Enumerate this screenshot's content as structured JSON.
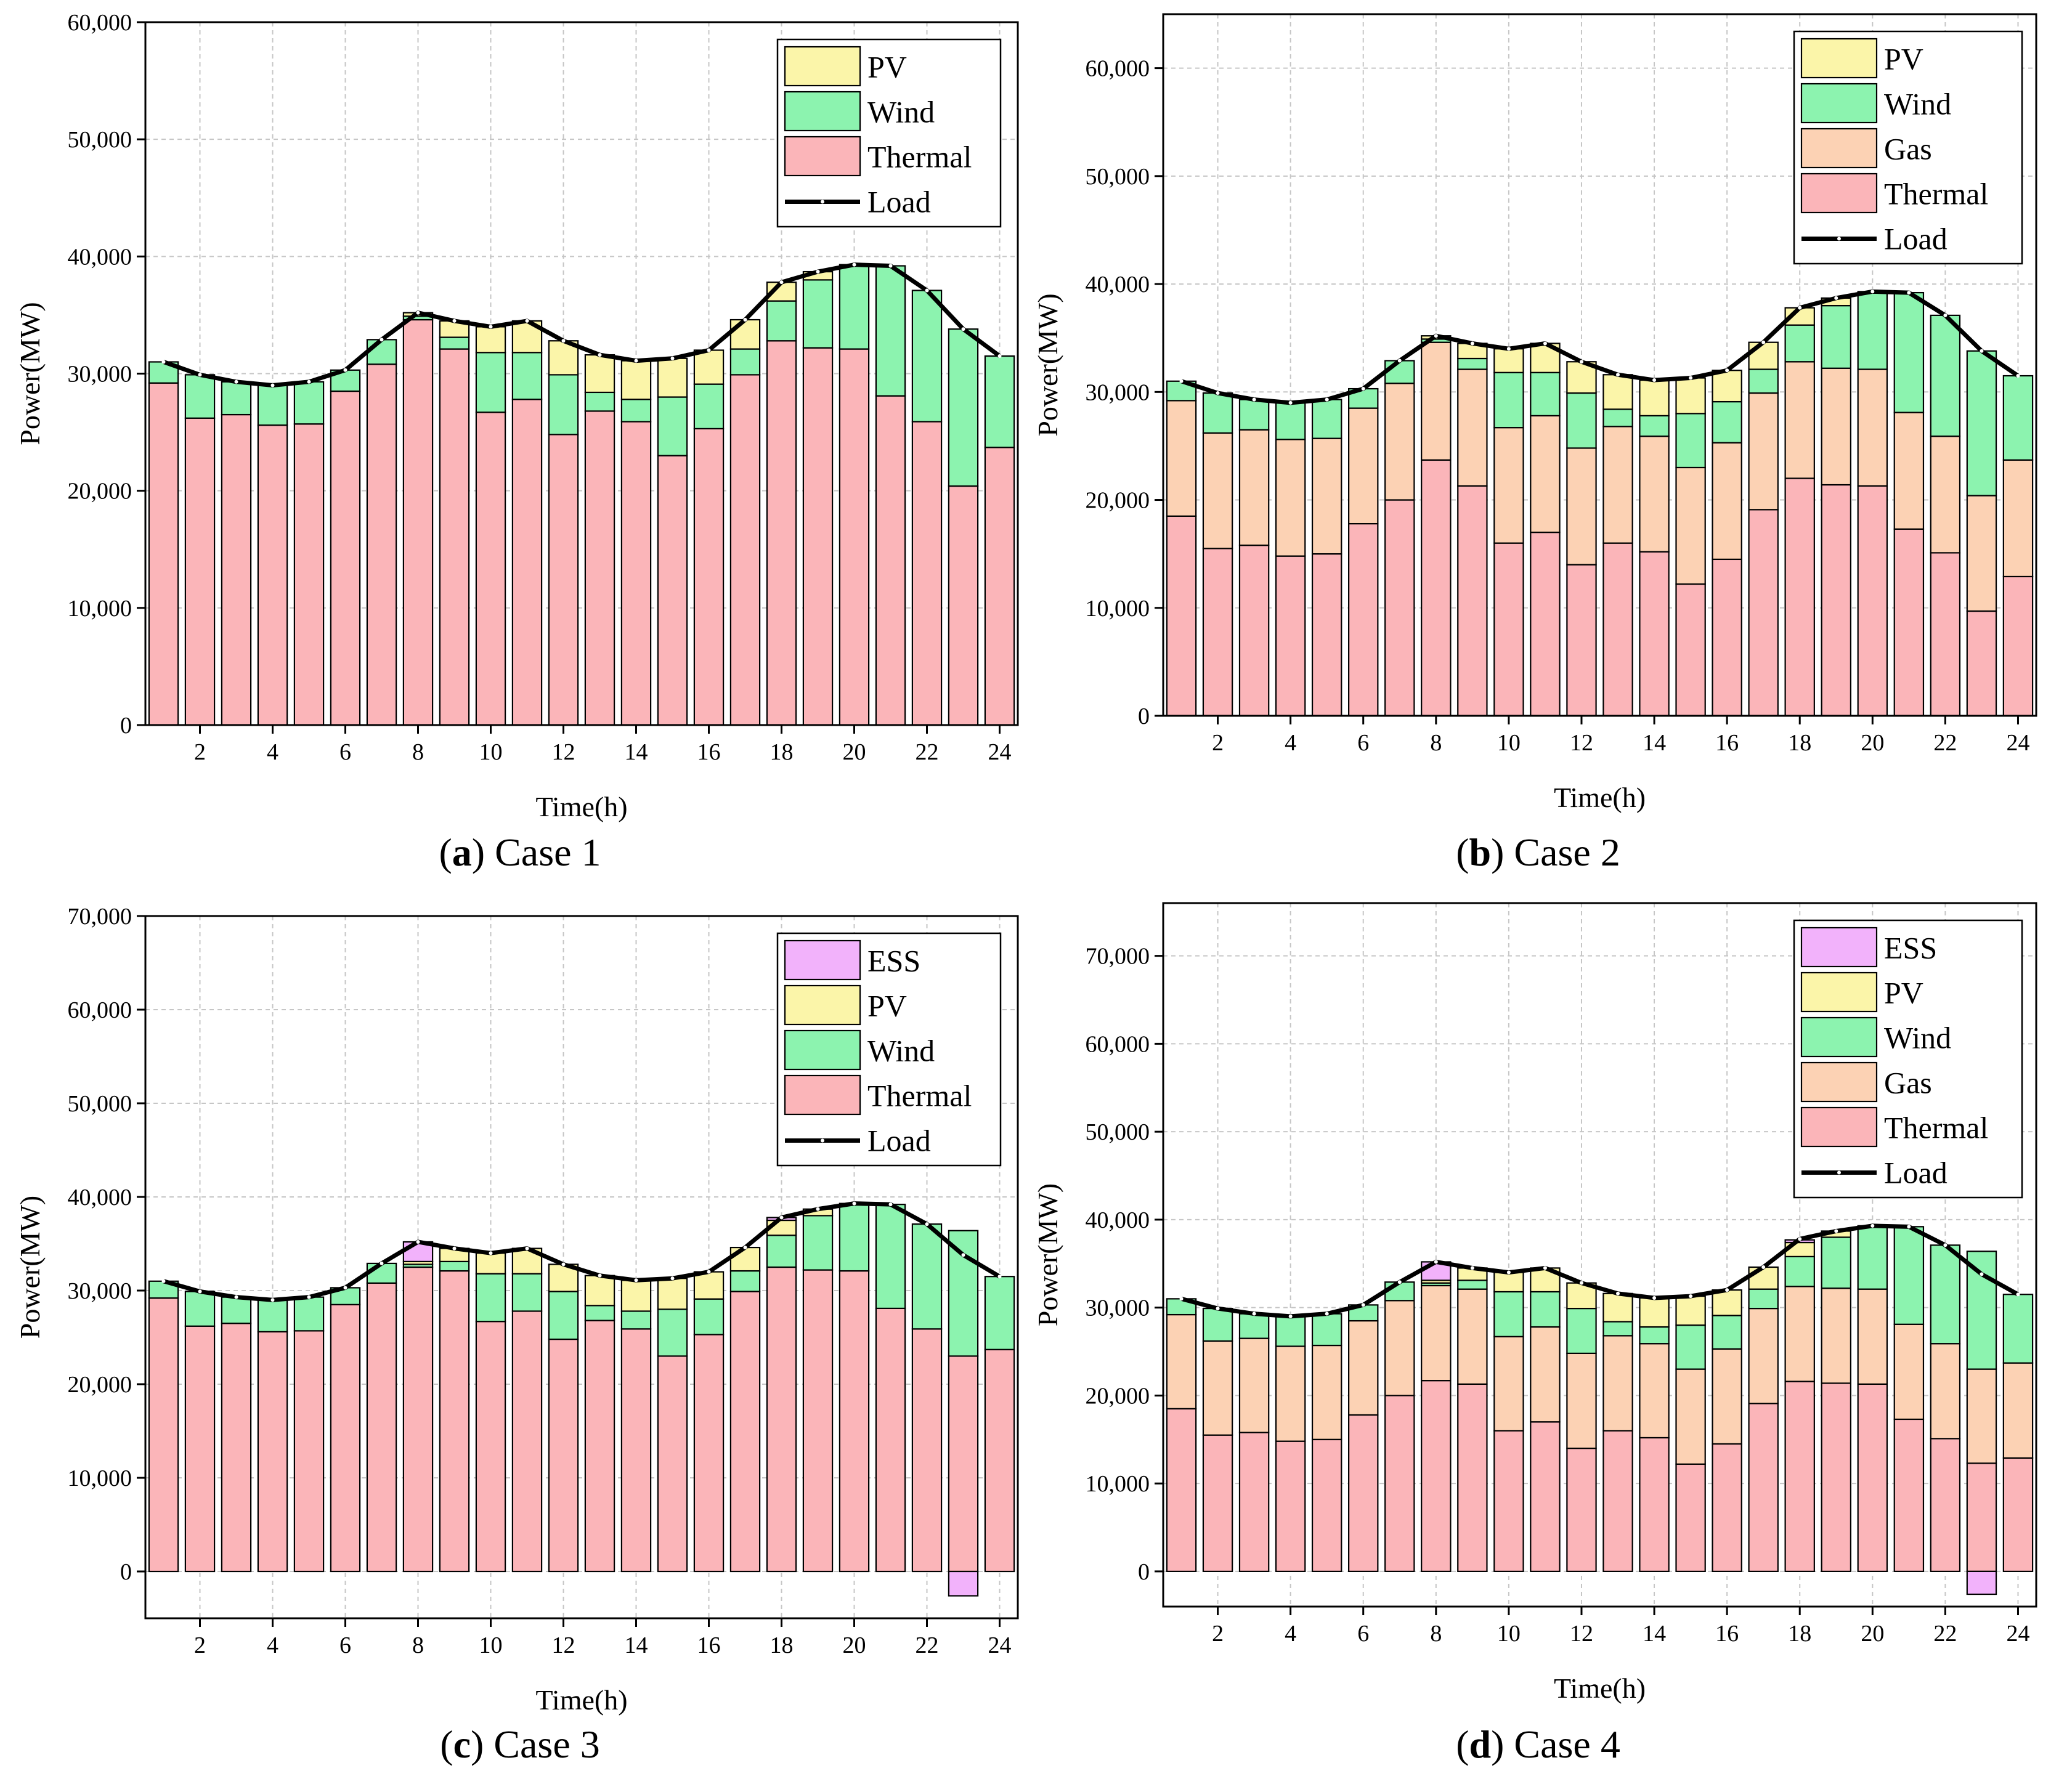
{
  "figure": {
    "colors": {
      "Thermal": "#fbb5b9",
      "Gas": "#fcd2b4",
      "Wind": "#8cf3af",
      "PV": "#fbf5a9",
      "ESS": "#f2b2fb",
      "Load": "#000000",
      "grid": "#c6c6c6"
    }
  },
  "chart_data": [
    {
      "id": "a",
      "type": "bar",
      "stacked": true,
      "caption_letter": "a",
      "caption_text": " Case 1",
      "title": "",
      "xlabel": "Time(h)",
      "ylabel": "Power(MW)",
      "ylim": [
        0,
        60000
      ],
      "yticks": [
        0,
        10000,
        20000,
        30000,
        40000,
        50000,
        60000
      ],
      "ytick_labels": [
        "0",
        "10,000",
        "20,000",
        "30,000",
        "40,000",
        "50,000",
        "60,000"
      ],
      "xticks": [
        2,
        4,
        6,
        8,
        10,
        12,
        14,
        16,
        18,
        20,
        22,
        24
      ],
      "xtick_labels": [
        "2",
        "4",
        "6",
        "8",
        "10",
        "12",
        "14",
        "16",
        "18",
        "20",
        "22",
        "24"
      ],
      "grid": true,
      "legend_position": "top-right",
      "legend": [
        "PV",
        "Wind",
        "Thermal",
        "Load"
      ],
      "categories": [
        1,
        2,
        3,
        4,
        5,
        6,
        7,
        8,
        9,
        10,
        11,
        12,
        13,
        14,
        15,
        16,
        17,
        18,
        19,
        20,
        21,
        22,
        23,
        24
      ],
      "series": [
        {
          "name": "Thermal",
          "values": [
            29200,
            26200,
            26500,
            25600,
            25700,
            28500,
            30800,
            34600,
            32100,
            26700,
            27800,
            24800,
            26800,
            25900,
            23000,
            25300,
            29900,
            32800,
            32200,
            32100,
            28100,
            25900,
            20400,
            23700
          ]
        },
        {
          "name": "Wind",
          "values": [
            1800,
            3700,
            2800,
            3400,
            3600,
            1800,
            2100,
            300,
            1000,
            5100,
            4000,
            5100,
            1600,
            1900,
            5000,
            3800,
            2200,
            3400,
            5800,
            7200,
            11100,
            11200,
            13400,
            7800
          ]
        },
        {
          "name": "PV",
          "values": [
            0,
            0,
            0,
            0,
            0,
            0,
            0,
            300,
            1400,
            2200,
            2700,
            2900,
            3200,
            3300,
            3300,
            2900,
            2500,
            1600,
            700,
            0,
            0,
            0,
            0,
            0
          ]
        }
      ],
      "load": [
        31000,
        29900,
        29300,
        29000,
        29300,
        30300,
        32900,
        35200,
        34500,
        34000,
        34500,
        32800,
        31600,
        31100,
        31300,
        32000,
        34600,
        37800,
        38700,
        39300,
        39200,
        37100,
        33800,
        31500
      ]
    },
    {
      "id": "b",
      "type": "bar",
      "stacked": true,
      "caption_letter": "b",
      "caption_text": " Case 2",
      "title": "",
      "xlabel": "Time(h)",
      "ylabel": "Power(MW)",
      "ylim": [
        0,
        65000
      ],
      "yticks": [
        0,
        10000,
        20000,
        30000,
        40000,
        50000,
        60000
      ],
      "ytick_labels": [
        "0",
        "10,000",
        "20,000",
        "30,000",
        "40,000",
        "50,000",
        "60,000"
      ],
      "xticks": [
        2,
        4,
        6,
        8,
        10,
        12,
        14,
        16,
        18,
        20,
        22,
        24
      ],
      "xtick_labels": [
        "2",
        "4",
        "6",
        "8",
        "10",
        "12",
        "14",
        "16",
        "18",
        "20",
        "22",
        "24"
      ],
      "grid": true,
      "legend_position": "top-right",
      "legend": [
        "PV",
        "Wind",
        "Gas",
        "Thermal",
        "Load"
      ],
      "categories": [
        1,
        2,
        3,
        4,
        5,
        6,
        7,
        8,
        9,
        10,
        11,
        12,
        13,
        14,
        15,
        16,
        17,
        18,
        19,
        20,
        21,
        22,
        23,
        24
      ],
      "series": [
        {
          "name": "Thermal",
          "values": [
            18500,
            15500,
            15800,
            14800,
            15000,
            17800,
            20000,
            23700,
            21300,
            16000,
            17000,
            14000,
            16000,
            15200,
            12200,
            14500,
            19100,
            22000,
            21400,
            21300,
            17300,
            15100,
            9700,
            12900
          ]
        },
        {
          "name": "Gas",
          "values": [
            10700,
            10700,
            10700,
            10800,
            10700,
            10700,
            10800,
            10900,
            10800,
            10700,
            10800,
            10800,
            10800,
            10700,
            10800,
            10800,
            10800,
            10800,
            10800,
            10800,
            10800,
            10800,
            10700,
            10800
          ]
        },
        {
          "name": "Wind",
          "values": [
            1800,
            3700,
            2800,
            3400,
            3600,
            1800,
            2100,
            300,
            1000,
            5100,
            4000,
            5100,
            1600,
            1900,
            5000,
            3800,
            2200,
            3400,
            5800,
            7200,
            11100,
            11200,
            13400,
            7800
          ]
        },
        {
          "name": "PV",
          "values": [
            0,
            0,
            0,
            0,
            0,
            0,
            0,
            300,
            1400,
            2200,
            2700,
            2900,
            3200,
            3300,
            3300,
            2900,
            2500,
            1600,
            700,
            0,
            0,
            0,
            0,
            0
          ]
        }
      ],
      "load": [
        31000,
        29900,
        29300,
        29000,
        29300,
        30300,
        32900,
        35200,
        34500,
        34000,
        34500,
        32800,
        31600,
        31100,
        31300,
        32000,
        34600,
        37800,
        38700,
        39300,
        39200,
        37100,
        33800,
        31500
      ]
    },
    {
      "id": "c",
      "type": "bar",
      "stacked": true,
      "caption_letter": "c",
      "caption_text": " Case 3",
      "title": "",
      "xlabel": "Time(h)",
      "ylabel": "Power(MW)",
      "ylim": [
        -5000,
        70000
      ],
      "yticks": [
        0,
        10000,
        20000,
        30000,
        40000,
        50000,
        60000,
        70000
      ],
      "ytick_labels": [
        "0",
        "10,000",
        "20,000",
        "30,000",
        "40,000",
        "50,000",
        "60,000",
        "70,000"
      ],
      "xticks": [
        2,
        4,
        6,
        8,
        10,
        12,
        14,
        16,
        18,
        20,
        22,
        24
      ],
      "xtick_labels": [
        "2",
        "4",
        "6",
        "8",
        "10",
        "12",
        "14",
        "16",
        "18",
        "20",
        "22",
        "24"
      ],
      "grid": true,
      "legend_position": "top-right",
      "legend": [
        "ESS",
        "PV",
        "Wind",
        "Thermal",
        "Load"
      ],
      "categories": [
        1,
        2,
        3,
        4,
        5,
        6,
        7,
        8,
        9,
        10,
        11,
        12,
        13,
        14,
        15,
        16,
        17,
        18,
        19,
        20,
        21,
        22,
        23,
        24
      ],
      "series": [
        {
          "name": "Thermal",
          "values": [
            29200,
            26200,
            26500,
            25600,
            25700,
            28500,
            30800,
            32500,
            32100,
            26700,
            27800,
            24800,
            26800,
            25900,
            23000,
            25300,
            29900,
            32500,
            32200,
            32100,
            28100,
            25900,
            23000,
            23700
          ]
        },
        {
          "name": "Wind",
          "values": [
            1800,
            3700,
            2800,
            3400,
            3600,
            1800,
            2100,
            300,
            1000,
            5100,
            4000,
            5100,
            1600,
            1900,
            5000,
            3800,
            2200,
            3400,
            5800,
            7200,
            11100,
            11200,
            13400,
            7800
          ]
        },
        {
          "name": "PV",
          "values": [
            0,
            0,
            0,
            0,
            0,
            0,
            0,
            300,
            1400,
            2200,
            2700,
            2900,
            3200,
            3300,
            3300,
            2900,
            2500,
            1600,
            700,
            0,
            0,
            0,
            0,
            0
          ]
        },
        {
          "name": "ESS",
          "values": [
            0,
            0,
            0,
            0,
            0,
            0,
            0,
            2100,
            0,
            0,
            0,
            0,
            0,
            0,
            0,
            0,
            0,
            300,
            0,
            0,
            0,
            0,
            -2600,
            0
          ]
        }
      ],
      "load": [
        31000,
        29900,
        29300,
        29000,
        29300,
        30300,
        32900,
        35200,
        34500,
        34000,
        34500,
        32800,
        31600,
        31100,
        31300,
        32000,
        34600,
        37800,
        38700,
        39300,
        39200,
        37100,
        33800,
        31500
      ]
    },
    {
      "id": "d",
      "type": "bar",
      "stacked": true,
      "caption_letter": "d",
      "caption_text": " Case 4",
      "title": "",
      "xlabel": "Time(h)",
      "ylabel": "Power(MW)",
      "ylim": [
        -4000,
        76000
      ],
      "yticks": [
        0,
        10000,
        20000,
        30000,
        40000,
        50000,
        60000,
        70000
      ],
      "ytick_labels": [
        "0",
        "10,000",
        "20,000",
        "30,000",
        "40,000",
        "50,000",
        "60,000",
        "70,000"
      ],
      "xticks": [
        2,
        4,
        6,
        8,
        10,
        12,
        14,
        16,
        18,
        20,
        22,
        24
      ],
      "xtick_labels": [
        "2",
        "4",
        "6",
        "8",
        "10",
        "12",
        "14",
        "16",
        "18",
        "20",
        "22",
        "24"
      ],
      "grid": true,
      "legend_position": "top-right",
      "legend": [
        "ESS",
        "PV",
        "Wind",
        "Gas",
        "Thermal",
        "Load"
      ],
      "categories": [
        1,
        2,
        3,
        4,
        5,
        6,
        7,
        8,
        9,
        10,
        11,
        12,
        13,
        14,
        15,
        16,
        17,
        18,
        19,
        20,
        21,
        22,
        23,
        24
      ],
      "series": [
        {
          "name": "Thermal",
          "values": [
            18500,
            15500,
            15800,
            14800,
            15000,
            17800,
            20000,
            21700,
            21300,
            16000,
            17000,
            14000,
            16000,
            15200,
            12200,
            14500,
            19100,
            21600,
            21400,
            21300,
            17300,
            15100,
            12300,
            12900
          ]
        },
        {
          "name": "Gas",
          "values": [
            10700,
            10700,
            10700,
            10800,
            10700,
            10700,
            10800,
            10800,
            10800,
            10700,
            10800,
            10800,
            10800,
            10700,
            10800,
            10800,
            10800,
            10800,
            10800,
            10800,
            10800,
            10800,
            10700,
            10800
          ]
        },
        {
          "name": "Wind",
          "values": [
            1800,
            3700,
            2800,
            3400,
            3600,
            1800,
            2100,
            300,
            1000,
            5100,
            4000,
            5100,
            1600,
            1900,
            5000,
            3800,
            2200,
            3400,
            5800,
            7200,
            11100,
            11200,
            13400,
            7800
          ]
        },
        {
          "name": "PV",
          "values": [
            0,
            0,
            0,
            0,
            0,
            0,
            0,
            300,
            1400,
            2200,
            2700,
            2900,
            3200,
            3300,
            3300,
            2900,
            2500,
            1600,
            700,
            0,
            0,
            0,
            0,
            0
          ]
        },
        {
          "name": "ESS",
          "values": [
            0,
            0,
            0,
            0,
            0,
            0,
            0,
            2100,
            0,
            0,
            0,
            0,
            0,
            0,
            0,
            0,
            0,
            300,
            0,
            0,
            0,
            0,
            -2600,
            0
          ]
        }
      ],
      "load": [
        31000,
        29900,
        29300,
        29000,
        29300,
        30300,
        32900,
        35200,
        34500,
        34000,
        34500,
        32800,
        31600,
        31100,
        31300,
        32000,
        34600,
        37800,
        38700,
        39300,
        39200,
        37100,
        33800,
        31500
      ]
    }
  ]
}
